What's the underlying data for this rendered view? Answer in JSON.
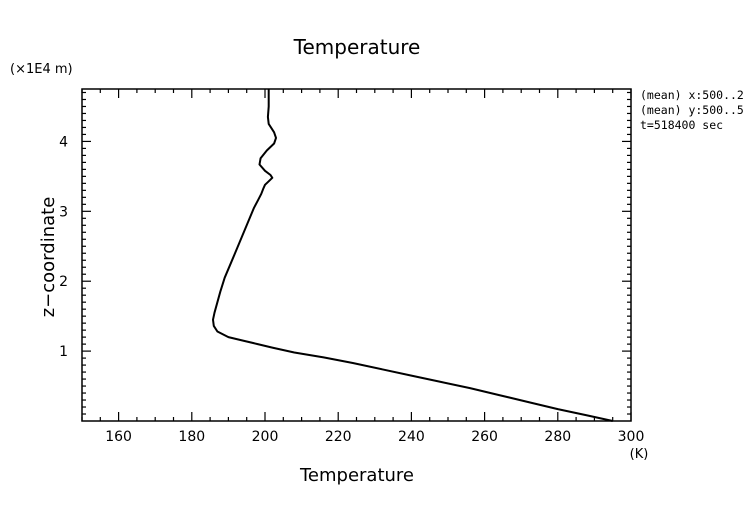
{
  "chart_data": {
    "type": "line",
    "title": "Temperature",
    "xlabel": "Temperature",
    "xunit": "(K)",
    "ylabel": "z−coordinate",
    "yunit": "(×1E4 m)",
    "xlim": [
      150,
      300
    ],
    "ylim": [
      0,
      4.75
    ],
    "xticks": [
      160,
      180,
      200,
      220,
      240,
      260,
      280,
      300
    ],
    "yticks": [
      1,
      2,
      3,
      4
    ],
    "annotations": [
      "(mean) x:500..2",
      "(mean) y:500..5",
      "t=518400 sec"
    ],
    "series": [
      {
        "color": "#000000",
        "x": [
          295,
          288,
          280,
          272,
          264,
          256,
          248,
          240,
          232,
          224,
          216,
          208,
          202,
          198,
          194,
          190,
          187,
          186,
          185.8,
          186.2,
          187,
          187.8,
          189,
          191,
          193,
          195,
          197,
          198,
          199,
          199.5,
          200,
          201,
          202,
          201.5,
          200,
          198.5,
          198.8,
          200.5,
          202.5,
          203,
          202.5,
          201,
          200.8,
          201,
          201,
          201
        ],
        "y": [
          0.0,
          0.08,
          0.17,
          0.27,
          0.37,
          0.47,
          0.56,
          0.65,
          0.74,
          0.83,
          0.91,
          0.98,
          1.05,
          1.1,
          1.15,
          1.2,
          1.28,
          1.36,
          1.45,
          1.55,
          1.7,
          1.85,
          2.05,
          2.3,
          2.55,
          2.8,
          3.05,
          3.15,
          3.25,
          3.32,
          3.38,
          3.43,
          3.48,
          3.52,
          3.58,
          3.67,
          3.76,
          3.87,
          3.97,
          4.05,
          4.13,
          4.25,
          4.35,
          4.5,
          4.65,
          4.75
        ]
      }
    ]
  }
}
